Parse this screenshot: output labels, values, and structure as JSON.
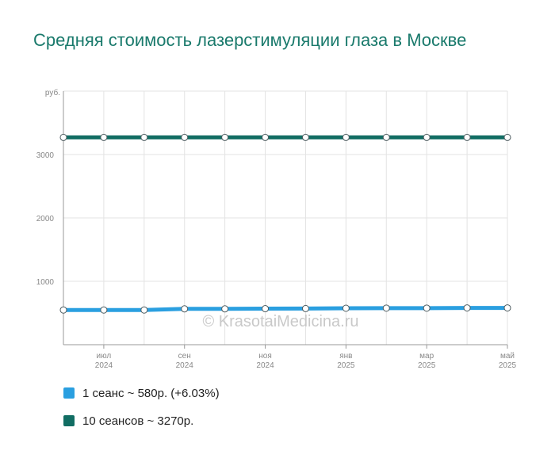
{
  "chart_data": {
    "type": "line",
    "title": "Средняя стоимость лазерстимуляции глаза в Москве",
    "y_unit_label": "руб.",
    "ylim": [
      0,
      4000
    ],
    "y_ticks": [
      1000,
      2000,
      3000
    ],
    "grid": true,
    "x_tick_labels": [
      {
        "index": 1,
        "month": "июл",
        "year": "2024"
      },
      {
        "index": 3,
        "month": "сен",
        "year": "2024"
      },
      {
        "index": 5,
        "month": "ноя",
        "year": "2024"
      },
      {
        "index": 7,
        "month": "янв",
        "year": "2025"
      },
      {
        "index": 9,
        "month": "мар",
        "year": "2025"
      },
      {
        "index": 11,
        "month": "май",
        "year": "2025"
      }
    ],
    "x": [
      "2024-06",
      "2024-07",
      "2024-08",
      "2024-09",
      "2024-10",
      "2024-11",
      "2024-12",
      "2025-01",
      "2025-02",
      "2025-03",
      "2025-04",
      "2025-05"
    ],
    "series": [
      {
        "name": "1 сеанс",
        "color": "#2a9fe0",
        "values": [
          547,
          547,
          547,
          565,
          565,
          568,
          570,
          575,
          577,
          577,
          580,
          580
        ]
      },
      {
        "name": "10 сеансов",
        "color": "#116d63",
        "values": [
          3270,
          3270,
          3270,
          3270,
          3270,
          3270,
          3270,
          3270,
          3270,
          3270,
          3270,
          3270
        ]
      }
    ],
    "legend": [
      {
        "text": "1 сеанс ~ 580р. (+6.03%)",
        "color": "#2a9fe0"
      },
      {
        "text": "10 сеансов ~ 3270р.",
        "color": "#116d63"
      }
    ],
    "legend_placement": "bottom-left",
    "watermark": "© KrasotaiMedicina.ru"
  }
}
